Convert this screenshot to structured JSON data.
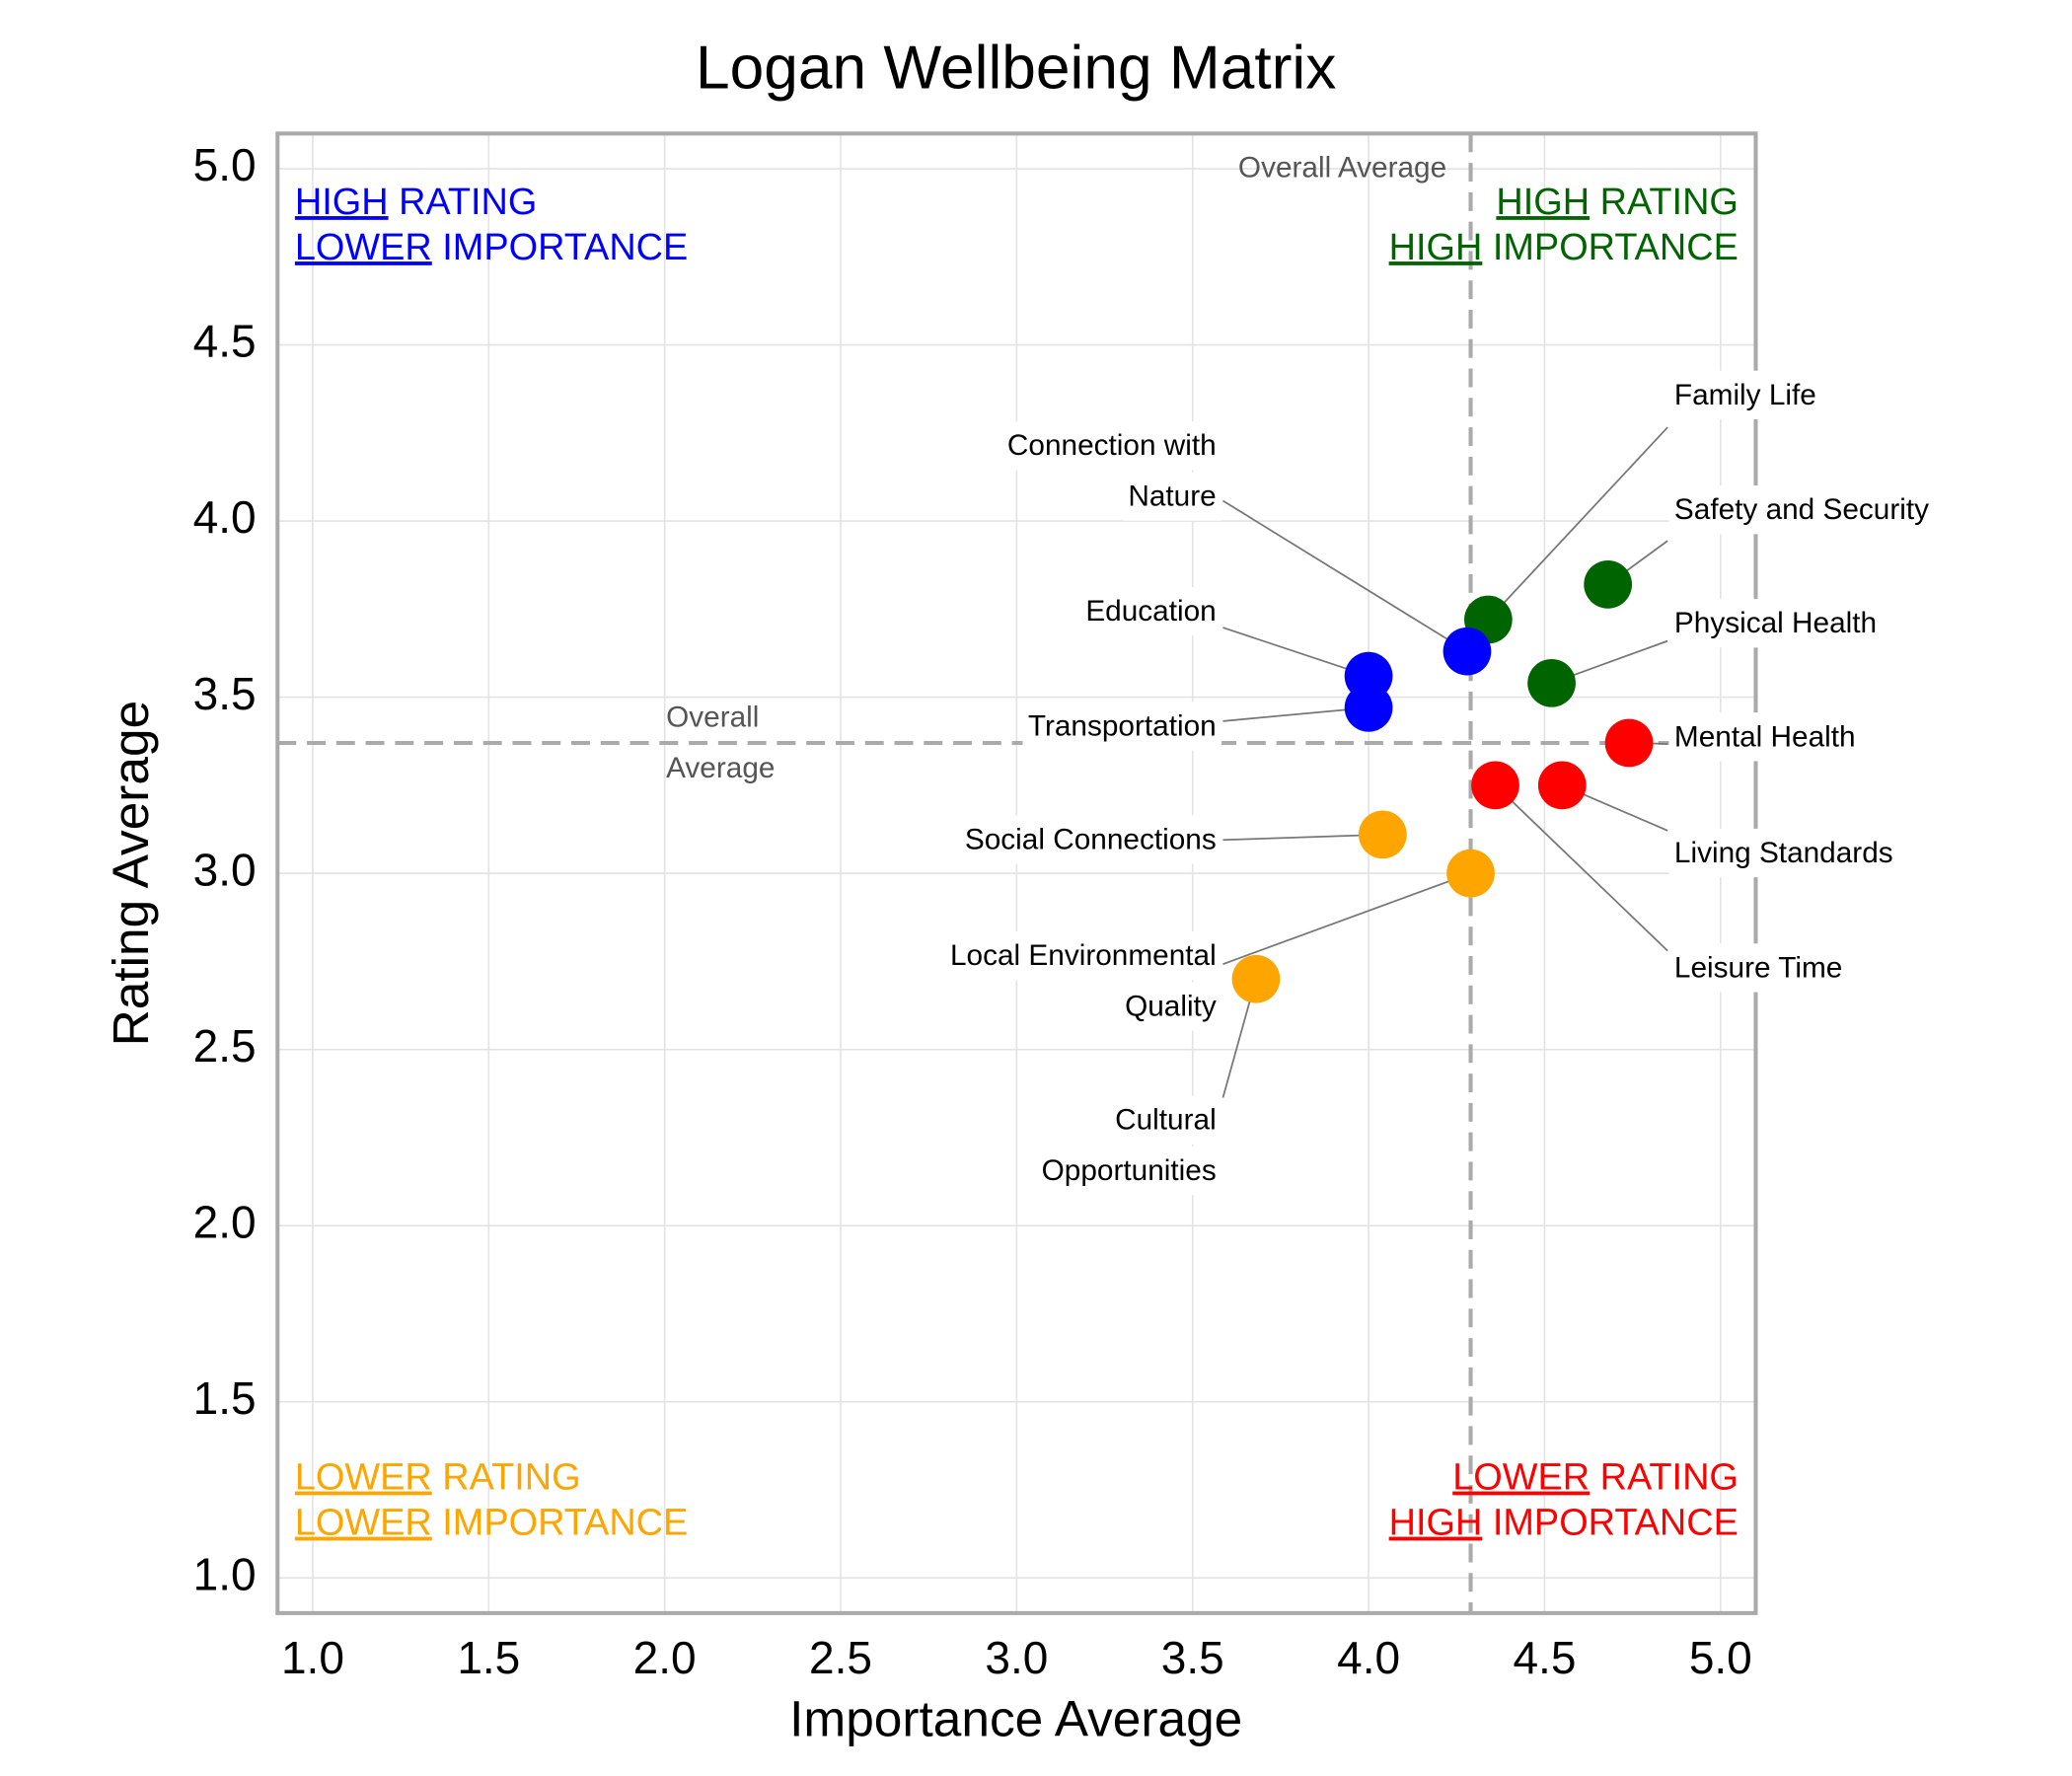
{
  "chart_data": {
    "type": "scatter",
    "title": "Logan Wellbeing Matrix",
    "x_label": "Importance Average",
    "y_label": "Rating Average",
    "xlim": [
      0.9,
      5.1
    ],
    "ylim": [
      0.9,
      5.1
    ],
    "xticks": [
      {
        "value": 1,
        "label": "1.0"
      },
      1.5,
      {
        "value": 2,
        "label": "2.0"
      },
      2.5,
      {
        "value": 3,
        "label": "3.0"
      },
      3.5,
      {
        "value": 4,
        "label": "4.0"
      },
      4.5,
      {
        "value": 5,
        "label": "5.0"
      }
    ],
    "yticks": [
      {
        "value": 1,
        "label": "1.0"
      },
      1.5,
      {
        "value": 2,
        "label": "2.0"
      },
      2.5,
      {
        "value": 3,
        "label": "3.0"
      },
      3.5,
      {
        "value": 4,
        "label": "4.0"
      },
      4.5,
      {
        "value": 5,
        "label": "5.0"
      }
    ],
    "grid": true,
    "reference_lines": {
      "x": 4.29,
      "y": 3.37,
      "x_line_label": "Overall Average",
      "y_line_label": [
        "Overall",
        "Average"
      ],
      "color": "#aaaaaa"
    },
    "quadrants": [
      {
        "corner": "top-left",
        "color": "#0000ff",
        "lines": [
          {
            "underlined": "HIGH",
            "text": " RATING"
          },
          {
            "underlined": "LOWER",
            "text": " IMPORTANCE"
          }
        ]
      },
      {
        "corner": "top-right",
        "color": "#006400",
        "lines": [
          {
            "underlined": "HIGH",
            "text": " RATING"
          },
          {
            "underlined": "HIGH",
            "text": " IMPORTANCE"
          }
        ]
      },
      {
        "corner": "bottom-left",
        "color": "#ffa500",
        "lines": [
          {
            "underlined": "LOWER",
            "text": " RATING"
          },
          {
            "underlined": "LOWER",
            "text": " IMPORTANCE"
          }
        ]
      },
      {
        "corner": "bottom-right",
        "color": "#ff0000",
        "lines": [
          {
            "underlined": "LOWER",
            "text": " RATING"
          },
          {
            "underlined": "HIGH",
            "text": " IMPORTANCE"
          }
        ]
      }
    ],
    "points": [
      {
        "label": [
          "Family Life"
        ],
        "x": 4.34,
        "y": 3.72,
        "color": "#006400"
      },
      {
        "label": [
          "Safety and Security"
        ],
        "x": 4.68,
        "y": 3.82,
        "color": "#006400"
      },
      {
        "label": [
          "Physical Health"
        ],
        "x": 4.52,
        "y": 3.54,
        "color": "#006400"
      },
      {
        "label": [
          "Mental Health"
        ],
        "x": 4.74,
        "y": 3.37,
        "color": "#ff0000"
      },
      {
        "label": [
          "Living Standards"
        ],
        "x": 4.55,
        "y": 3.25,
        "color": "#ff0000"
      },
      {
        "label": [
          "Leisure Time"
        ],
        "x": 4.36,
        "y": 3.25,
        "color": "#ff0000"
      },
      {
        "label": [
          "Connection with",
          "Nature"
        ],
        "x": 4.28,
        "y": 3.63,
        "color": "#0000ff"
      },
      {
        "label": [
          "Education"
        ],
        "x": 4.0,
        "y": 3.56,
        "color": "#0000ff"
      },
      {
        "label": [
          "Transportation"
        ],
        "x": 4.0,
        "y": 3.47,
        "color": "#0000ff"
      },
      {
        "label": [
          "Social Connections"
        ],
        "x": 4.04,
        "y": 3.11,
        "color": "#ffa500"
      },
      {
        "label": [
          "Local Environmental",
          "Quality"
        ],
        "x": 4.29,
        "y": 3.0,
        "color": "#ffa500"
      },
      {
        "label": [
          "Cultural",
          "Opportunities"
        ],
        "x": 3.68,
        "y": 2.7,
        "color": "#ffa500"
      }
    ]
  }
}
